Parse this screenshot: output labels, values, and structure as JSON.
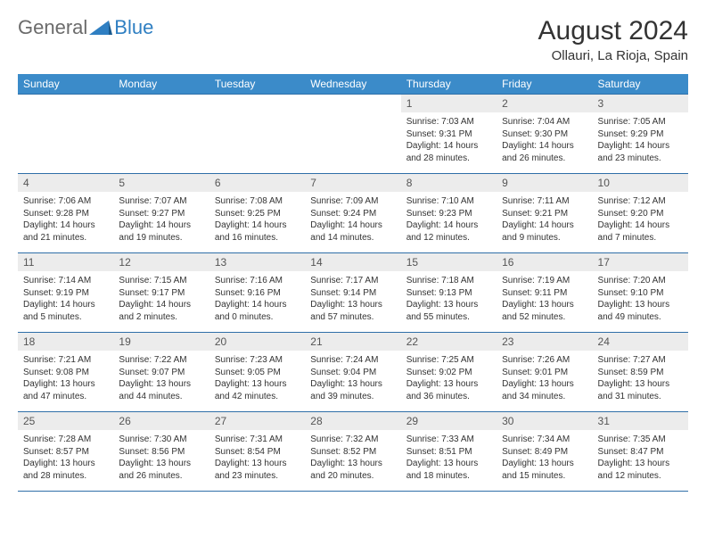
{
  "logo": {
    "general": "General",
    "blue": "Blue"
  },
  "title": "August 2024",
  "location": "Ollauri, La Rioja, Spain",
  "weekdays": [
    "Sunday",
    "Monday",
    "Tuesday",
    "Wednesday",
    "Thursday",
    "Friday",
    "Saturday"
  ],
  "colors": {
    "header_bg": "#3b8bc9",
    "header_text": "#ffffff",
    "num_bg": "#ececec",
    "border": "#2f6fa8",
    "body_text": "#333333",
    "logo_gray": "#6b6b6b",
    "logo_blue": "#2f7fc2"
  },
  "calendar": {
    "type": "table",
    "first_weekday_index": 4,
    "weeks": [
      [
        null,
        null,
        null,
        null,
        {
          "n": "1",
          "sr": "Sunrise: 7:03 AM",
          "ss": "Sunset: 9:31 PM",
          "dl": "Daylight: 14 hours and 28 minutes."
        },
        {
          "n": "2",
          "sr": "Sunrise: 7:04 AM",
          "ss": "Sunset: 9:30 PM",
          "dl": "Daylight: 14 hours and 26 minutes."
        },
        {
          "n": "3",
          "sr": "Sunrise: 7:05 AM",
          "ss": "Sunset: 9:29 PM",
          "dl": "Daylight: 14 hours and 23 minutes."
        }
      ],
      [
        {
          "n": "4",
          "sr": "Sunrise: 7:06 AM",
          "ss": "Sunset: 9:28 PM",
          "dl": "Daylight: 14 hours and 21 minutes."
        },
        {
          "n": "5",
          "sr": "Sunrise: 7:07 AM",
          "ss": "Sunset: 9:27 PM",
          "dl": "Daylight: 14 hours and 19 minutes."
        },
        {
          "n": "6",
          "sr": "Sunrise: 7:08 AM",
          "ss": "Sunset: 9:25 PM",
          "dl": "Daylight: 14 hours and 16 minutes."
        },
        {
          "n": "7",
          "sr": "Sunrise: 7:09 AM",
          "ss": "Sunset: 9:24 PM",
          "dl": "Daylight: 14 hours and 14 minutes."
        },
        {
          "n": "8",
          "sr": "Sunrise: 7:10 AM",
          "ss": "Sunset: 9:23 PM",
          "dl": "Daylight: 14 hours and 12 minutes."
        },
        {
          "n": "9",
          "sr": "Sunrise: 7:11 AM",
          "ss": "Sunset: 9:21 PM",
          "dl": "Daylight: 14 hours and 9 minutes."
        },
        {
          "n": "10",
          "sr": "Sunrise: 7:12 AM",
          "ss": "Sunset: 9:20 PM",
          "dl": "Daylight: 14 hours and 7 minutes."
        }
      ],
      [
        {
          "n": "11",
          "sr": "Sunrise: 7:14 AM",
          "ss": "Sunset: 9:19 PM",
          "dl": "Daylight: 14 hours and 5 minutes."
        },
        {
          "n": "12",
          "sr": "Sunrise: 7:15 AM",
          "ss": "Sunset: 9:17 PM",
          "dl": "Daylight: 14 hours and 2 minutes."
        },
        {
          "n": "13",
          "sr": "Sunrise: 7:16 AM",
          "ss": "Sunset: 9:16 PM",
          "dl": "Daylight: 14 hours and 0 minutes."
        },
        {
          "n": "14",
          "sr": "Sunrise: 7:17 AM",
          "ss": "Sunset: 9:14 PM",
          "dl": "Daylight: 13 hours and 57 minutes."
        },
        {
          "n": "15",
          "sr": "Sunrise: 7:18 AM",
          "ss": "Sunset: 9:13 PM",
          "dl": "Daylight: 13 hours and 55 minutes."
        },
        {
          "n": "16",
          "sr": "Sunrise: 7:19 AM",
          "ss": "Sunset: 9:11 PM",
          "dl": "Daylight: 13 hours and 52 minutes."
        },
        {
          "n": "17",
          "sr": "Sunrise: 7:20 AM",
          "ss": "Sunset: 9:10 PM",
          "dl": "Daylight: 13 hours and 49 minutes."
        }
      ],
      [
        {
          "n": "18",
          "sr": "Sunrise: 7:21 AM",
          "ss": "Sunset: 9:08 PM",
          "dl": "Daylight: 13 hours and 47 minutes."
        },
        {
          "n": "19",
          "sr": "Sunrise: 7:22 AM",
          "ss": "Sunset: 9:07 PM",
          "dl": "Daylight: 13 hours and 44 minutes."
        },
        {
          "n": "20",
          "sr": "Sunrise: 7:23 AM",
          "ss": "Sunset: 9:05 PM",
          "dl": "Daylight: 13 hours and 42 minutes."
        },
        {
          "n": "21",
          "sr": "Sunrise: 7:24 AM",
          "ss": "Sunset: 9:04 PM",
          "dl": "Daylight: 13 hours and 39 minutes."
        },
        {
          "n": "22",
          "sr": "Sunrise: 7:25 AM",
          "ss": "Sunset: 9:02 PM",
          "dl": "Daylight: 13 hours and 36 minutes."
        },
        {
          "n": "23",
          "sr": "Sunrise: 7:26 AM",
          "ss": "Sunset: 9:01 PM",
          "dl": "Daylight: 13 hours and 34 minutes."
        },
        {
          "n": "24",
          "sr": "Sunrise: 7:27 AM",
          "ss": "Sunset: 8:59 PM",
          "dl": "Daylight: 13 hours and 31 minutes."
        }
      ],
      [
        {
          "n": "25",
          "sr": "Sunrise: 7:28 AM",
          "ss": "Sunset: 8:57 PM",
          "dl": "Daylight: 13 hours and 28 minutes."
        },
        {
          "n": "26",
          "sr": "Sunrise: 7:30 AM",
          "ss": "Sunset: 8:56 PM",
          "dl": "Daylight: 13 hours and 26 minutes."
        },
        {
          "n": "27",
          "sr": "Sunrise: 7:31 AM",
          "ss": "Sunset: 8:54 PM",
          "dl": "Daylight: 13 hours and 23 minutes."
        },
        {
          "n": "28",
          "sr": "Sunrise: 7:32 AM",
          "ss": "Sunset: 8:52 PM",
          "dl": "Daylight: 13 hours and 20 minutes."
        },
        {
          "n": "29",
          "sr": "Sunrise: 7:33 AM",
          "ss": "Sunset: 8:51 PM",
          "dl": "Daylight: 13 hours and 18 minutes."
        },
        {
          "n": "30",
          "sr": "Sunrise: 7:34 AM",
          "ss": "Sunset: 8:49 PM",
          "dl": "Daylight: 13 hours and 15 minutes."
        },
        {
          "n": "31",
          "sr": "Sunrise: 7:35 AM",
          "ss": "Sunset: 8:47 PM",
          "dl": "Daylight: 13 hours and 12 minutes."
        }
      ]
    ]
  }
}
